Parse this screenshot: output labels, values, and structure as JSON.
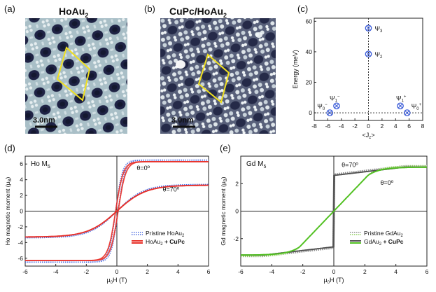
{
  "panels": {
    "a": {
      "letter": "(a)",
      "title": "HoAu",
      "title_sub": "2",
      "scale_bar": "3.0nm"
    },
    "b": {
      "letter": "(b)",
      "title": "CuPc/HoAu",
      "title_sub": "2",
      "scale_bar": "3.0nm"
    },
    "c": {
      "letter": "(c)"
    },
    "d": {
      "letter": "(d)",
      "element_label": "Ho M",
      "element_sub": "5"
    },
    "e": {
      "letter": "(e)",
      "element_label": "Gd M",
      "element_sub": "5"
    }
  },
  "colors": {
    "stm_bg": "#a8c0c8",
    "stm_dark": "#1c2040",
    "stm_hi": "#e8f0f0",
    "diamond": "#f0e020",
    "marker": "#3a5bd8",
    "pristine_ho_0": "#4a6ae0",
    "pristine_ho_70": "#4a6ae0",
    "cupc_ho_0": "#e83028",
    "cupc_ho_70": "#e83028",
    "pristine_gd_0": "#909090",
    "pristine_gd_70": "#90d060",
    "cupc_gd_0": "#505050",
    "cupc_gd_70": "#50c020"
  },
  "chart_data": [
    {
      "id": "c",
      "type": "scatter",
      "title": "",
      "xlabel": "<J_z>",
      "ylabel": "Energy (meV)",
      "xlim": [
        -8,
        8
      ],
      "ylim": [
        -5,
        62
      ],
      "xticks": [
        -8,
        -6,
        -4,
        -2,
        0,
        2,
        4,
        6,
        8
      ],
      "yticks": [
        0,
        20,
        40,
        60
      ],
      "points": [
        {
          "x": -5.7,
          "y": 0,
          "label": "Ψ",
          "sub": "0",
          "sup": "−"
        },
        {
          "x": -4.7,
          "y": 4.5,
          "label": "Ψ",
          "sub": "1",
          "sup": "−"
        },
        {
          "x": 4.7,
          "y": 4.5,
          "label": "Ψ",
          "sub": "1",
          "sup": "+"
        },
        {
          "x": 5.7,
          "y": 0,
          "label": "Ψ",
          "sub": "0",
          "sup": "+"
        },
        {
          "x": 0,
          "y": 38.5,
          "label": "Ψ",
          "sub": "2",
          "sup": ""
        },
        {
          "x": 0,
          "y": 55.5,
          "label": "Ψ",
          "sub": "3",
          "sup": ""
        }
      ]
    },
    {
      "id": "d",
      "type": "line",
      "xlabel": "μ₀H (T)",
      "ylabel": "Ho magnetic moment (μ_B)",
      "xlim": [
        -6,
        6
      ],
      "ylim": [
        -7,
        7
      ],
      "xticks": [
        -6,
        -4,
        -2,
        0,
        2,
        4,
        6
      ],
      "yticks": [
        -6,
        -4,
        -2,
        0,
        2,
        4,
        6
      ],
      "annotations": [
        {
          "text": "θ=0º",
          "x": 1.3,
          "y": 5.2
        },
        {
          "text": "θ=70º",
          "x": 3.0,
          "y": 2.5
        }
      ],
      "legend": [
        {
          "label": "Pristine HoAu",
          "sub": "2",
          "bold": "",
          "style": "dotted"
        },
        {
          "label": "HoAu",
          "sub": "2",
          "bold": " + CuPc",
          "style": "solid"
        }
      ],
      "series": [
        {
          "name": "Pristine HoAu2 θ=0º",
          "style": "dotted",
          "color_key": "pristine_ho_0",
          "model": "loop",
          "sat": 6.4,
          "hc": 0.08,
          "w": 0.45,
          "loop": "wide"
        },
        {
          "name": "Pristine HoAu2 θ=70º",
          "style": "dotted",
          "color_key": "pristine_ho_70",
          "model": "tanh",
          "sat": 3.4,
          "w": 1.6
        },
        {
          "name": "HoAu2 + CuPc θ=0º",
          "style": "solid",
          "color_key": "cupc_ho_0",
          "model": "loop",
          "sat": 6.3,
          "hc": 0.08,
          "w": 0.5,
          "loop": "wide"
        },
        {
          "name": "HoAu2 + CuPc θ=70º",
          "style": "solid",
          "color_key": "cupc_ho_70",
          "model": "tanh",
          "sat": 3.3,
          "w": 1.7
        }
      ]
    },
    {
      "id": "e",
      "type": "line",
      "xlabel": "μ₀H (T)",
      "ylabel": "Gd magnetic moment (μ_B)",
      "xlim": [
        -6,
        6
      ],
      "ylim": [
        -4,
        4
      ],
      "xticks": [
        -6,
        -4,
        -2,
        0,
        2,
        4,
        6
      ],
      "yticks": [
        -2,
        0,
        2
      ],
      "annotations": [
        {
          "text": "θ=70º",
          "x": 0.5,
          "y": 3.2
        },
        {
          "text": "θ=0º",
          "x": 3.0,
          "y": 1.9
        }
      ],
      "legend": [
        {
          "label": "Pristine GdAu",
          "sub": "2",
          "bold": "",
          "style": "dotted"
        },
        {
          "label": "GdAu",
          "sub": "2",
          "bold": " + CuPc",
          "style": "solid"
        }
      ],
      "series": [
        {
          "name": "Pristine GdAu2 θ=70º",
          "style": "dotted",
          "color_key": "pristine_gd_0",
          "model": "step",
          "sat": 3.3,
          "jump": 2.7,
          "slope": 0.12
        },
        {
          "name": "Pristine GdAu2 θ=0º",
          "style": "dotted",
          "color_key": "pristine_gd_70",
          "model": "ramp",
          "sat": 3.3,
          "knee": 2.3,
          "kink": 2.7
        },
        {
          "name": "GdAu2 + CuPc θ=70º",
          "style": "solid",
          "color_key": "cupc_gd_0",
          "model": "step",
          "sat": 3.2,
          "jump": 2.6,
          "slope": 0.12
        },
        {
          "name": "GdAu2 + CuPc θ=0º",
          "style": "solid",
          "color_key": "cupc_gd_70",
          "model": "ramp",
          "sat": 3.2,
          "knee": 2.2,
          "kink": 2.6
        }
      ]
    }
  ]
}
